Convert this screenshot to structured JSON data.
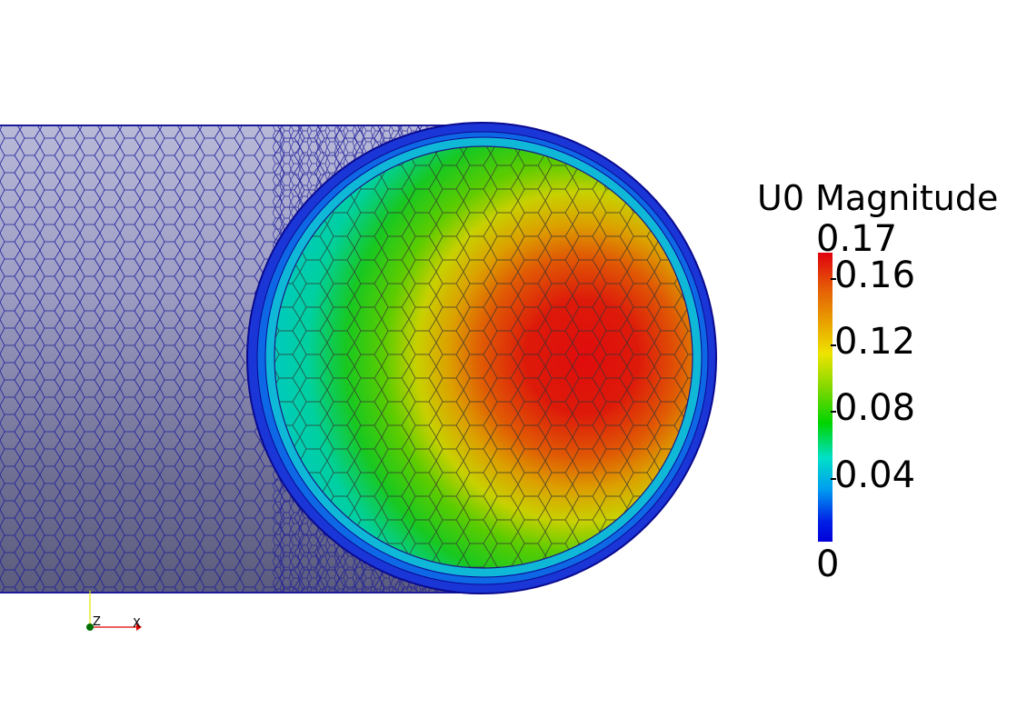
{
  "legend": {
    "title": "U0 Magnitude",
    "max_label": "0.17",
    "min_label": "0",
    "ticks": [
      "0.16",
      "0.12",
      "0.08",
      "0.04"
    ],
    "range": [
      0,
      0.17
    ],
    "colormap": [
      "#0000d8",
      "#009cf0",
      "#00e0c8",
      "#00d400",
      "#7fd800",
      "#eee400",
      "#e9a000",
      "#e55a06",
      "#e0000e"
    ]
  },
  "axes_widget": {
    "z_label": "Z",
    "x_label": "X"
  },
  "colors": {
    "pipe_surface": "#8f8fb8",
    "mesh_edges": "#1b1b9a",
    "axis_x": "#e00000",
    "axis_y": "#e6e600",
    "axis_z": "#007000"
  }
}
